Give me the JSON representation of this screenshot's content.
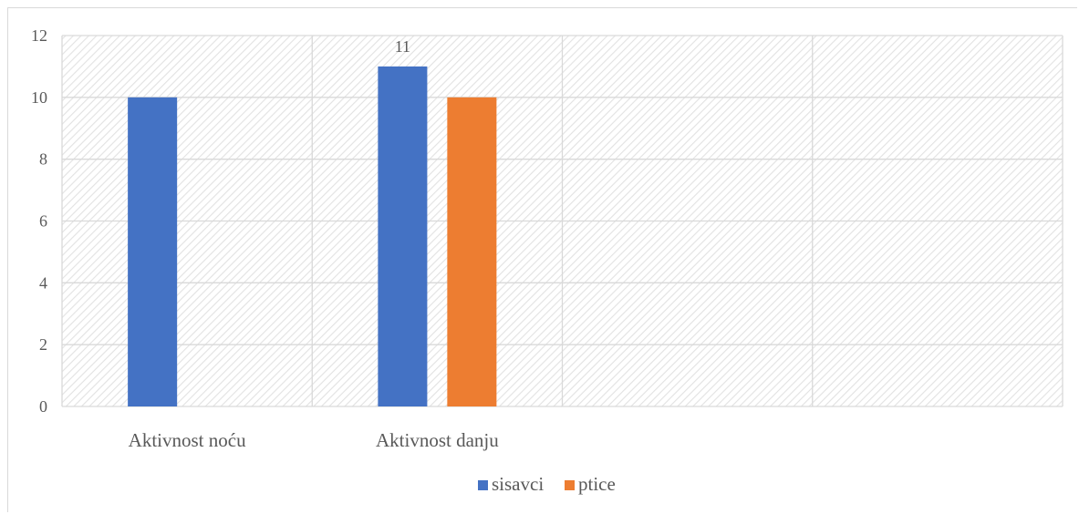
{
  "chart_data": {
    "type": "bar",
    "categories": [
      "Aktivnost noću",
      "Aktivnost danju",
      "",
      ""
    ],
    "series": [
      {
        "name": "sisavci",
        "color": "#4472c4",
        "values": [
          10,
          11,
          null,
          null
        ]
      },
      {
        "name": "ptice",
        "color": "#ed7d31",
        "values": [
          null,
          10,
          null,
          null
        ]
      }
    ],
    "data_labels": [
      {
        "series": 0,
        "category": 1,
        "text": "11"
      }
    ],
    "y_ticks": [
      "0",
      "2",
      "4",
      "6",
      "8",
      "10",
      "12"
    ],
    "ylim": [
      0,
      12
    ],
    "grid": true,
    "background_pattern": "diagonal-hatch",
    "legend_position": "bottom",
    "title": "",
    "xlabel": "",
    "ylabel": ""
  }
}
